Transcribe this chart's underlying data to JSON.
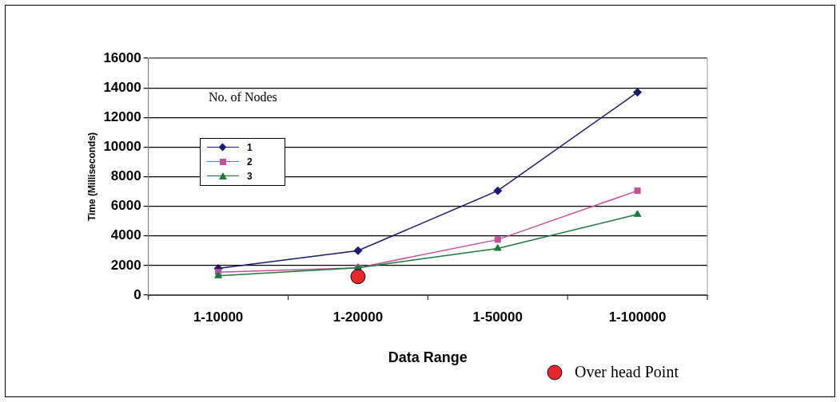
{
  "chart_data": {
    "type": "line",
    "xlabel": "Data Range",
    "ylabel": "Time (Milliseconds)",
    "legend_title": "No. of Nodes",
    "legend": "top left",
    "annotations": [
      "Over head Point"
    ],
    "categories": [
      "1-10000",
      "1-20000",
      "1-50000",
      "1-100000"
    ],
    "ylim": [
      0,
      16000
    ],
    "yticks": [
      0,
      2000,
      4000,
      6000,
      8000,
      10000,
      12000,
      14000,
      16000
    ],
    "grid": "y",
    "series": [
      {
        "name": "1",
        "color": "#1a1a6e",
        "marker": "diamond",
        "values": [
          1800,
          3000,
          7050,
          13700
        ]
      },
      {
        "name": "2",
        "color": "#c4509c",
        "marker": "square",
        "values": [
          1550,
          1850,
          3750,
          7050
        ]
      },
      {
        "name": "3",
        "color": "#1a7a3a",
        "marker": "triangle",
        "values": [
          1300,
          1850,
          3150,
          5450
        ]
      },
      {
        "type": "scatter",
        "color": "#e8262b",
        "marker": "circle",
        "x": [
          "1-20000"
        ],
        "values": [
          1250
        ]
      }
    ]
  }
}
